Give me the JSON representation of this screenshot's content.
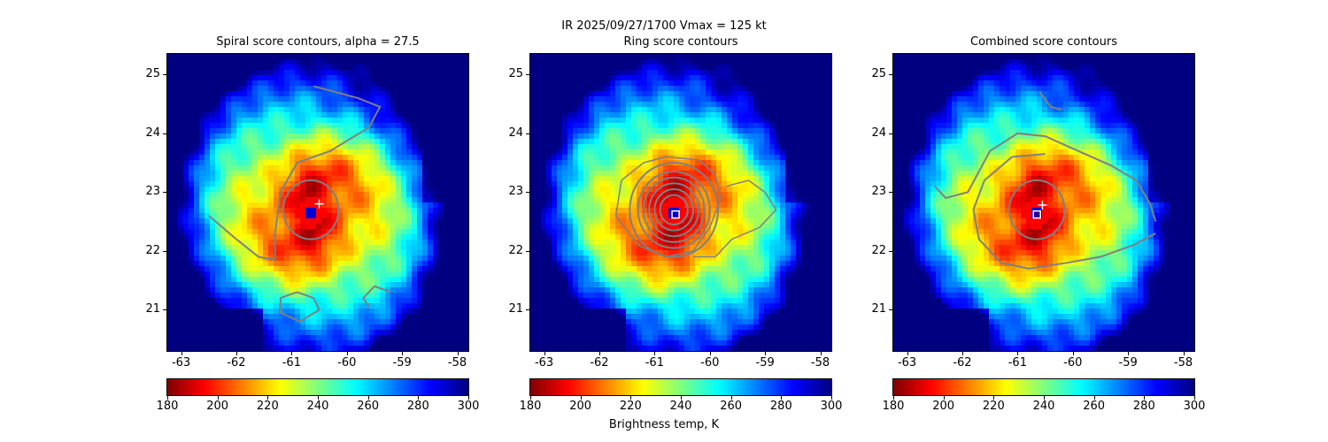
{
  "chart_data": {
    "type": "heatmap",
    "title": "IR  2025/09/27/1700    Vmax = 125 kt",
    "colorbar": {
      "label": "Brightness temp, K",
      "range": [
        180,
        300
      ],
      "ticks": [
        "180",
        "200",
        "220",
        "240",
        "260",
        "280",
        "300"
      ],
      "colormap": "jet_r"
    },
    "xlim": [
      -63.25,
      -57.8
    ],
    "ylim": [
      20.3,
      25.35
    ],
    "xticks": [
      "-63",
      "-62",
      "-61",
      "-60",
      "-59",
      "-58"
    ],
    "yticks": [
      "21",
      "22",
      "23",
      "24",
      "25"
    ],
    "storm_center": {
      "lon": -60.65,
      "lat": 22.65,
      "eye_temp_K": 290
    },
    "contour_color": "#808080",
    "panels": [
      {
        "title": "Spiral score contours, alpha = 27.5",
        "marker_plus": {
          "lon": -60.5,
          "lat": 22.8
        }
      },
      {
        "title": "Ring score contours",
        "marker_square": {
          "lon": -60.62,
          "lat": 22.62
        }
      },
      {
        "title": "Combined score contours",
        "marker_plus": {
          "lon": -60.55,
          "lat": 22.78
        },
        "marker_square": {
          "lon": -60.65,
          "lat": 22.62
        }
      }
    ]
  }
}
